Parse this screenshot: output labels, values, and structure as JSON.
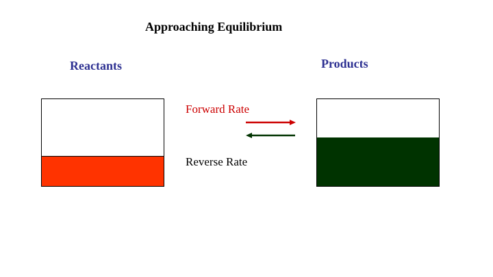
{
  "diagram": {
    "title": "Approaching Equilibrium",
    "reactants": {
      "label": "Reactants",
      "label_color": "#2E3192",
      "fill_color": "#FF3300",
      "fill_level": 0.34
    },
    "products": {
      "label": "Products",
      "label_color": "#2E3192",
      "fill_color": "#003300",
      "fill_level": 0.56
    },
    "forward": {
      "label": "Forward Rate",
      "color": "#CC0000"
    },
    "reverse": {
      "label": "Reverse Rate",
      "color": "#003300"
    }
  }
}
